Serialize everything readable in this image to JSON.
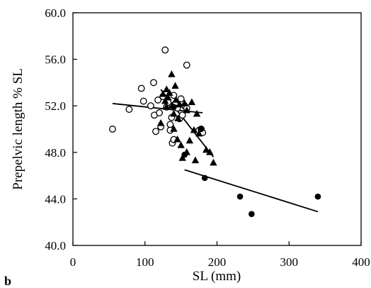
{
  "chart_data": {
    "type": "scatter",
    "panel_label": "b",
    "xlabel": "SL (mm)",
    "ylabel": "Prepelvic length % SL",
    "xlim": [
      0,
      400
    ],
    "ylim": [
      40.0,
      60.0
    ],
    "x_ticks": [
      0,
      100,
      200,
      300,
      400
    ],
    "x_tick_labels": [
      "0",
      "100",
      "200",
      "300",
      "400"
    ],
    "y_ticks": [
      40.0,
      44.0,
      48.0,
      52.0,
      56.0,
      60.0
    ],
    "y_tick_labels": [
      "40.0",
      "44.0",
      "48.0",
      "52.0",
      "56.0",
      "60.0"
    ],
    "grid": false,
    "legend": "none",
    "series": [
      {
        "marker": "open-circle",
        "points": [
          [
            55,
            50.0
          ],
          [
            78,
            51.7
          ],
          [
            95,
            53.5
          ],
          [
            98,
            52.4
          ],
          [
            108,
            52.0
          ],
          [
            112,
            54.0
          ],
          [
            113,
            51.2
          ],
          [
            115,
            49.8
          ],
          [
            118,
            52.5
          ],
          [
            120,
            51.4
          ],
          [
            122,
            50.2
          ],
          [
            125,
            52.8
          ],
          [
            128,
            56.8
          ],
          [
            130,
            51.9
          ],
          [
            132,
            52.3
          ],
          [
            135,
            50.4
          ],
          [
            135,
            49.9
          ],
          [
            137,
            51.0
          ],
          [
            138,
            48.8
          ],
          [
            140,
            52.9
          ],
          [
            140,
            49.1
          ],
          [
            142,
            52.1
          ],
          [
            145,
            51.8
          ],
          [
            148,
            50.9
          ],
          [
            150,
            52.6
          ],
          [
            152,
            51.2
          ],
          [
            155,
            52.0
          ],
          [
            158,
            55.5
          ],
          [
            158,
            51.8
          ],
          [
            175,
            49.9
          ],
          [
            178,
            50.0
          ],
          [
            180,
            49.7
          ]
        ],
        "trend": [
          [
            55,
            52.2
          ],
          [
            180,
            51.4
          ]
        ]
      },
      {
        "marker": "filled-triangle",
        "points": [
          [
            122,
            50.5
          ],
          [
            125,
            53.0
          ],
          [
            128,
            52.4
          ],
          [
            130,
            53.4
          ],
          [
            130,
            51.9
          ],
          [
            132,
            52.7
          ],
          [
            134,
            53.1
          ],
          [
            137,
            54.7
          ],
          [
            138,
            52.0
          ],
          [
            140,
            50.0
          ],
          [
            140,
            51.3
          ],
          [
            142,
            53.7
          ],
          [
            143,
            52.5
          ],
          [
            145,
            49.1
          ],
          [
            146,
            50.9
          ],
          [
            148,
            52.1
          ],
          [
            150,
            48.6
          ],
          [
            152,
            47.5
          ],
          [
            155,
            52.2
          ],
          [
            158,
            51.6
          ],
          [
            158,
            48.0
          ],
          [
            162,
            49.0
          ],
          [
            165,
            52.3
          ],
          [
            168,
            49.9
          ],
          [
            170,
            47.3
          ],
          [
            172,
            51.3
          ],
          [
            175,
            49.6
          ],
          [
            185,
            48.2
          ],
          [
            190,
            48.0
          ],
          [
            195,
            47.1
          ]
        ],
        "trend": [
          [
            122,
            53.4
          ],
          [
            195,
            47.6
          ]
        ]
      },
      {
        "marker": "filled-circle",
        "points": [
          [
            140,
            51.9
          ],
          [
            155,
            47.8
          ],
          [
            178,
            50.0
          ],
          [
            183,
            45.8
          ],
          [
            232,
            44.2
          ],
          [
            248,
            42.7
          ],
          [
            340,
            44.2
          ]
        ],
        "trend": [
          [
            155,
            46.5
          ],
          [
            340,
            42.9
          ]
        ]
      }
    ]
  }
}
